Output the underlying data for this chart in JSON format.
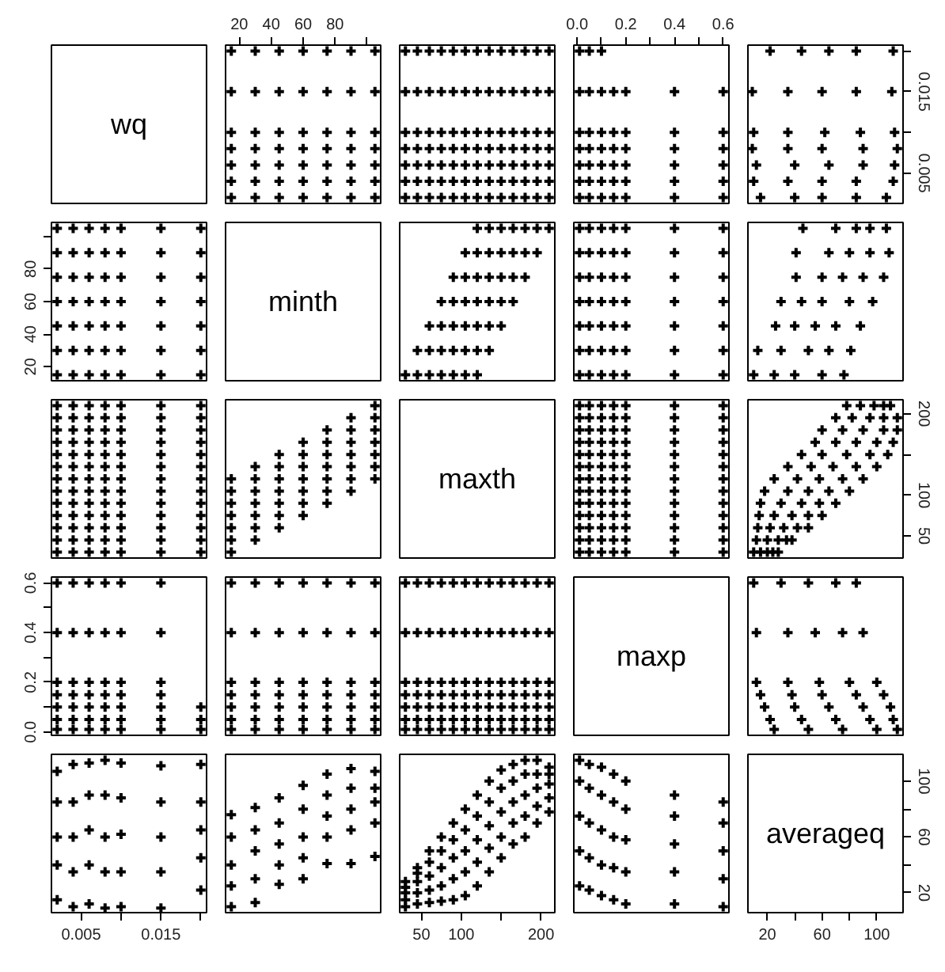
{
  "chart_data": [
    {
      "type": "other",
      "title": "wq"
    },
    {
      "type": "scatter",
      "marker": "cross",
      "color": "#000000",
      "tick_labels": "x",
      "xlim": [
        11.4,
        108.6
      ],
      "ylim": [
        0.00128,
        0.02072
      ],
      "xticks": [
        20,
        40,
        60,
        80,
        {
          "value": 100,
          "label": null
        }
      ],
      "x": [
        15,
        30,
        45,
        60,
        75,
        90,
        105,
        15,
        30,
        45,
        60,
        75,
        90,
        105,
        15,
        30,
        45,
        60,
        75,
        90,
        105,
        15,
        30,
        45,
        60,
        75,
        90,
        105,
        15,
        30,
        45,
        60,
        75,
        90,
        105,
        15,
        30,
        45,
        60,
        75,
        90,
        105,
        15,
        30,
        45,
        60,
        75,
        90,
        105
      ],
      "values": [
        0.002,
        0.002,
        0.002,
        0.002,
        0.002,
        0.002,
        0.002,
        0.004,
        0.004,
        0.004,
        0.004,
        0.004,
        0.004,
        0.004,
        0.006,
        0.006,
        0.006,
        0.006,
        0.006,
        0.006,
        0.006,
        0.008,
        0.008,
        0.008,
        0.008,
        0.008,
        0.008,
        0.008,
        0.01,
        0.01,
        0.01,
        0.01,
        0.01,
        0.01,
        0.01,
        0.015,
        0.015,
        0.015,
        0.015,
        0.015,
        0.015,
        0.015,
        0.02,
        0.02,
        0.02,
        0.02,
        0.02,
        0.02,
        0.02
      ]
    },
    {
      "type": "scatter",
      "marker": "cross",
      "color": "#000000",
      "tick_labels": false,
      "xlim": [
        22.8,
        217.2
      ],
      "ylim": [
        0.00128,
        0.02072
      ],
      "x": [
        30,
        45,
        60,
        75,
        90,
        105,
        120,
        135,
        150,
        165,
        180,
        195,
        210,
        30,
        45,
        60,
        75,
        90,
        105,
        120,
        135,
        150,
        165,
        180,
        195,
        210,
        30,
        45,
        60,
        75,
        90,
        105,
        120,
        135,
        150,
        165,
        180,
        195,
        210,
        30,
        45,
        60,
        75,
        90,
        105,
        120,
        135,
        150,
        165,
        180,
        195,
        210,
        30,
        45,
        60,
        75,
        90,
        105,
        120,
        135,
        150,
        165,
        180,
        195,
        210,
        30,
        45,
        60,
        75,
        90,
        105,
        120,
        135,
        150,
        165,
        180,
        195,
        210,
        30,
        45,
        60,
        75,
        90,
        105,
        120,
        135,
        150,
        165,
        180,
        195,
        210
      ],
      "values": [
        0.002,
        0.002,
        0.002,
        0.002,
        0.002,
        0.002,
        0.002,
        0.002,
        0.002,
        0.002,
        0.002,
        0.002,
        0.002,
        0.004,
        0.004,
        0.004,
        0.004,
        0.004,
        0.004,
        0.004,
        0.004,
        0.004,
        0.004,
        0.004,
        0.004,
        0.004,
        0.006,
        0.006,
        0.006,
        0.006,
        0.006,
        0.006,
        0.006,
        0.006,
        0.006,
        0.006,
        0.006,
        0.006,
        0.006,
        0.008,
        0.008,
        0.008,
        0.008,
        0.008,
        0.008,
        0.008,
        0.008,
        0.008,
        0.008,
        0.008,
        0.008,
        0.008,
        0.01,
        0.01,
        0.01,
        0.01,
        0.01,
        0.01,
        0.01,
        0.01,
        0.01,
        0.01,
        0.01,
        0.01,
        0.01,
        0.015,
        0.015,
        0.015,
        0.015,
        0.015,
        0.015,
        0.015,
        0.015,
        0.015,
        0.015,
        0.015,
        0.015,
        0.015,
        0.02,
        0.02,
        0.02,
        0.02,
        0.02,
        0.02,
        0.02,
        0.02,
        0.02,
        0.02,
        0.02,
        0.02,
        0.02
      ]
    },
    {
      "type": "scatter",
      "marker": "cross",
      "color": "#000000",
      "tick_labels": "x",
      "xlim": [
        -0.0136,
        0.6236
      ],
      "ylim": [
        0.00128,
        0.02072
      ],
      "xticks": [
        {
          "value": 0,
          "label": "0.0"
        },
        {
          "value": 0.1,
          "label": null
        },
        0.2,
        {
          "value": 0.3,
          "label": null
        },
        0.4,
        {
          "value": 0.5,
          "label": null
        },
        0.6
      ],
      "x": [
        0.01,
        0.05,
        0.1,
        0.15,
        0.2,
        0.4,
        0.6,
        0.01,
        0.05,
        0.1,
        0.15,
        0.2,
        0.4,
        0.6,
        0.01,
        0.05,
        0.1,
        0.15,
        0.2,
        0.4,
        0.6,
        0.01,
        0.05,
        0.1,
        0.15,
        0.2,
        0.4,
        0.6,
        0.01,
        0.05,
        0.1,
        0.15,
        0.2,
        0.4,
        0.6,
        0.01,
        0.05,
        0.1,
        0.15,
        0.2,
        0.4,
        0.6,
        0.01,
        0.05,
        0.1
      ],
      "values": [
        0.002,
        0.002,
        0.002,
        0.002,
        0.002,
        0.002,
        0.002,
        0.004,
        0.004,
        0.004,
        0.004,
        0.004,
        0.004,
        0.004,
        0.006,
        0.006,
        0.006,
        0.006,
        0.006,
        0.006,
        0.006,
        0.008,
        0.008,
        0.008,
        0.008,
        0.008,
        0.008,
        0.008,
        0.01,
        0.01,
        0.01,
        0.01,
        0.01,
        0.01,
        0.01,
        0.015,
        0.015,
        0.015,
        0.015,
        0.015,
        0.015,
        0.015,
        0.02,
        0.02,
        0.02
      ]
    },
    {
      "type": "scatter",
      "marker": "cross",
      "color": "#000000",
      "tick_labels": "y",
      "xlim": [
        5.8,
        119.2
      ],
      "ylim": [
        0.00128,
        0.02072
      ],
      "yticks": [
        0.005,
        {
          "value": 0.01,
          "label": null
        },
        0.015,
        {
          "value": 0.02,
          "label": null
        }
      ],
      "x": [
        15,
        40,
        60,
        85,
        107,
        10,
        35,
        60,
        85,
        112,
        12,
        40,
        65,
        90,
        113,
        9,
        35,
        60,
        90,
        115,
        10,
        35,
        62,
        88,
        113,
        9,
        35,
        60,
        85,
        111,
        22,
        45,
        65,
        85,
        112
      ],
      "values": [
        0.002,
        0.002,
        0.002,
        0.002,
        0.002,
        0.004,
        0.004,
        0.004,
        0.004,
        0.004,
        0.006,
        0.006,
        0.006,
        0.006,
        0.006,
        0.008,
        0.008,
        0.008,
        0.008,
        0.008,
        0.01,
        0.01,
        0.01,
        0.01,
        0.01,
        0.015,
        0.015,
        0.015,
        0.015,
        0.015,
        0.02,
        0.02,
        0.02,
        0.02,
        0.02
      ]
    },
    {
      "type": "scatter",
      "marker": "cross",
      "color": "#000000",
      "tick_labels": "y",
      "xlim": [
        0.00128,
        0.02072
      ],
      "ylim": [
        11.4,
        108.6
      ],
      "yticks": [
        20,
        40,
        60,
        80,
        {
          "value": 100,
          "label": null
        }
      ],
      "x": [
        0.002,
        0.002,
        0.002,
        0.002,
        0.002,
        0.002,
        0.002,
        0.004,
        0.004,
        0.004,
        0.004,
        0.004,
        0.004,
        0.004,
        0.006,
        0.006,
        0.006,
        0.006,
        0.006,
        0.006,
        0.006,
        0.008,
        0.008,
        0.008,
        0.008,
        0.008,
        0.008,
        0.008,
        0.01,
        0.01,
        0.01,
        0.01,
        0.01,
        0.01,
        0.01,
        0.015,
        0.015,
        0.015,
        0.015,
        0.015,
        0.015,
        0.015,
        0.02,
        0.02,
        0.02,
        0.02,
        0.02,
        0.02,
        0.02
      ],
      "values": [
        15,
        30,
        45,
        60,
        75,
        90,
        105,
        15,
        30,
        45,
        60,
        75,
        90,
        105,
        15,
        30,
        45,
        60,
        75,
        90,
        105,
        15,
        30,
        45,
        60,
        75,
        90,
        105,
        15,
        30,
        45,
        60,
        75,
        90,
        105,
        15,
        30,
        45,
        60,
        75,
        90,
        105,
        15,
        30,
        45,
        60,
        75,
        90,
        105
      ]
    },
    {
      "type": "other",
      "title": "minth"
    },
    {
      "type": "scatter",
      "marker": "cross",
      "color": "#000000",
      "tick_labels": false,
      "xlim": [
        22.8,
        217.2
      ],
      "ylim": [
        11.4,
        108.6
      ],
      "x": [
        30,
        45,
        60,
        75,
        90,
        105,
        120,
        45,
        60,
        75,
        90,
        105,
        120,
        135,
        60,
        75,
        90,
        105,
        120,
        135,
        150,
        75,
        90,
        105,
        120,
        135,
        150,
        165,
        90,
        105,
        120,
        135,
        150,
        165,
        180,
        105,
        120,
        135,
        150,
        165,
        180,
        195,
        120,
        135,
        150,
        165,
        180,
        195,
        210
      ],
      "values": [
        15,
        15,
        15,
        15,
        15,
        15,
        15,
        30,
        30,
        30,
        30,
        30,
        30,
        30,
        45,
        45,
        45,
        45,
        45,
        45,
        45,
        60,
        60,
        60,
        60,
        60,
        60,
        60,
        75,
        75,
        75,
        75,
        75,
        75,
        75,
        90,
        90,
        90,
        90,
        90,
        90,
        90,
        105,
        105,
        105,
        105,
        105,
        105,
        105
      ]
    },
    {
      "type": "scatter",
      "marker": "cross",
      "color": "#000000",
      "tick_labels": false,
      "xlim": [
        -0.0136,
        0.6236
      ],
      "ylim": [
        11.4,
        108.6
      ],
      "x": [
        0.01,
        0.05,
        0.1,
        0.15,
        0.2,
        0.4,
        0.6,
        0.01,
        0.05,
        0.1,
        0.15,
        0.2,
        0.4,
        0.6,
        0.01,
        0.05,
        0.1,
        0.15,
        0.2,
        0.4,
        0.6,
        0.01,
        0.05,
        0.1,
        0.15,
        0.2,
        0.4,
        0.6,
        0.01,
        0.05,
        0.1,
        0.15,
        0.2,
        0.4,
        0.6,
        0.01,
        0.05,
        0.1,
        0.15,
        0.2,
        0.4,
        0.6,
        0.01,
        0.05,
        0.1,
        0.15,
        0.2,
        0.4,
        0.6
      ],
      "values": [
        15,
        15,
        15,
        15,
        15,
        15,
        15,
        30,
        30,
        30,
        30,
        30,
        30,
        30,
        45,
        45,
        45,
        45,
        45,
        45,
        45,
        60,
        60,
        60,
        60,
        60,
        60,
        60,
        75,
        75,
        75,
        75,
        75,
        75,
        75,
        90,
        90,
        90,
        90,
        90,
        90,
        90,
        105,
        105,
        105,
        105,
        105,
        105,
        105
      ]
    },
    {
      "type": "scatter",
      "marker": "cross",
      "color": "#000000",
      "tick_labels": false,
      "xlim": [
        5.8,
        119.2
      ],
      "ylim": [
        11.4,
        108.6
      ],
      "x": [
        10,
        25,
        40,
        60,
        76,
        13,
        30,
        50,
        65,
        81,
        26,
        40,
        55,
        70,
        88,
        30,
        45,
        60,
        80,
        97,
        41,
        60,
        75,
        90,
        105,
        41,
        65,
        80,
        95,
        109,
        46,
        70,
        85,
        95,
        107
      ],
      "values": [
        15,
        15,
        15,
        15,
        15,
        30,
        30,
        30,
        30,
        30,
        45,
        45,
        45,
        45,
        45,
        60,
        60,
        60,
        60,
        60,
        75,
        75,
        75,
        75,
        75,
        90,
        90,
        90,
        90,
        90,
        105,
        105,
        105,
        105,
        105
      ]
    },
    {
      "type": "scatter",
      "marker": "cross",
      "color": "#000000",
      "tick_labels": false,
      "xlim": [
        0.00128,
        0.02072
      ],
      "ylim": [
        22.8,
        217.2
      ],
      "x": [
        0.002,
        0.002,
        0.002,
        0.002,
        0.002,
        0.002,
        0.002,
        0.002,
        0.002,
        0.002,
        0.002,
        0.002,
        0.002,
        0.004,
        0.004,
        0.004,
        0.004,
        0.004,
        0.004,
        0.004,
        0.004,
        0.004,
        0.004,
        0.004,
        0.004,
        0.004,
        0.006,
        0.006,
        0.006,
        0.006,
        0.006,
        0.006,
        0.006,
        0.006,
        0.006,
        0.006,
        0.006,
        0.006,
        0.006,
        0.008,
        0.008,
        0.008,
        0.008,
        0.008,
        0.008,
        0.008,
        0.008,
        0.008,
        0.008,
        0.008,
        0.008,
        0.008,
        0.01,
        0.01,
        0.01,
        0.01,
        0.01,
        0.01,
        0.01,
        0.01,
        0.01,
        0.01,
        0.01,
        0.01,
        0.01,
        0.015,
        0.015,
        0.015,
        0.015,
        0.015,
        0.015,
        0.015,
        0.015,
        0.015,
        0.015,
        0.015,
        0.015,
        0.015,
        0.02,
        0.02,
        0.02,
        0.02,
        0.02,
        0.02,
        0.02,
        0.02,
        0.02,
        0.02,
        0.02,
        0.02,
        0.02
      ],
      "values": [
        30,
        45,
        60,
        75,
        90,
        105,
        120,
        135,
        150,
        165,
        180,
        195,
        210,
        30,
        45,
        60,
        75,
        90,
        105,
        120,
        135,
        150,
        165,
        180,
        195,
        210,
        30,
        45,
        60,
        75,
        90,
        105,
        120,
        135,
        150,
        165,
        180,
        195,
        210,
        30,
        45,
        60,
        75,
        90,
        105,
        120,
        135,
        150,
        165,
        180,
        195,
        210,
        30,
        45,
        60,
        75,
        90,
        105,
        120,
        135,
        150,
        165,
        180,
        195,
        210,
        30,
        45,
        60,
        75,
        90,
        105,
        120,
        135,
        150,
        165,
        180,
        195,
        210,
        30,
        45,
        60,
        75,
        90,
        105,
        120,
        135,
        150,
        165,
        180,
        195,
        210
      ]
    },
    {
      "type": "scatter",
      "marker": "cross",
      "color": "#000000",
      "tick_labels": false,
      "xlim": [
        11.4,
        108.6
      ],
      "ylim": [
        22.8,
        217.2
      ],
      "x": [
        15,
        15,
        15,
        15,
        15,
        15,
        15,
        30,
        30,
        30,
        30,
        30,
        30,
        30,
        45,
        45,
        45,
        45,
        45,
        45,
        45,
        60,
        60,
        60,
        60,
        60,
        60,
        60,
        75,
        75,
        75,
        75,
        75,
        75,
        75,
        90,
        90,
        90,
        90,
        90,
        90,
        90,
        105,
        105,
        105,
        105,
        105,
        105,
        105
      ],
      "values": [
        30,
        45,
        60,
        75,
        90,
        105,
        120,
        45,
        60,
        75,
        90,
        105,
        120,
        135,
        60,
        75,
        90,
        105,
        120,
        135,
        150,
        75,
        90,
        105,
        120,
        135,
        150,
        165,
        90,
        105,
        120,
        135,
        150,
        165,
        180,
        105,
        120,
        135,
        150,
        165,
        180,
        195,
        120,
        135,
        150,
        165,
        180,
        195,
        210
      ]
    },
    {
      "type": "other",
      "title": "maxth"
    },
    {
      "type": "scatter",
      "marker": "cross",
      "color": "#000000",
      "tick_labels": false,
      "xlim": [
        -0.0136,
        0.6236
      ],
      "ylim": [
        22.8,
        217.2
      ],
      "x": [
        0.01,
        0.05,
        0.1,
        0.15,
        0.2,
        0.4,
        0.6,
        0.01,
        0.05,
        0.1,
        0.15,
        0.2,
        0.4,
        0.6,
        0.01,
        0.05,
        0.1,
        0.15,
        0.2,
        0.4,
        0.6,
        0.01,
        0.05,
        0.1,
        0.15,
        0.2,
        0.4,
        0.6,
        0.01,
        0.05,
        0.1,
        0.15,
        0.2,
        0.4,
        0.6,
        0.01,
        0.05,
        0.1,
        0.15,
        0.2,
        0.4,
        0.6,
        0.01,
        0.05,
        0.1,
        0.15,
        0.2,
        0.4,
        0.6,
        0.01,
        0.05,
        0.1,
        0.15,
        0.2,
        0.4,
        0.6,
        0.01,
        0.05,
        0.1,
        0.15,
        0.2,
        0.4,
        0.6,
        0.01,
        0.05,
        0.1,
        0.15,
        0.2,
        0.4,
        0.6,
        0.01,
        0.05,
        0.1,
        0.15,
        0.2,
        0.4,
        0.6,
        0.01,
        0.05,
        0.1,
        0.15,
        0.2,
        0.4,
        0.6,
        0.01,
        0.05,
        0.1,
        0.15,
        0.2,
        0.4,
        0.6
      ],
      "values": [
        30,
        30,
        30,
        30,
        30,
        30,
        30,
        45,
        45,
        45,
        45,
        45,
        45,
        45,
        60,
        60,
        60,
        60,
        60,
        60,
        60,
        75,
        75,
        75,
        75,
        75,
        75,
        75,
        90,
        90,
        90,
        90,
        90,
        90,
        90,
        105,
        105,
        105,
        105,
        105,
        105,
        105,
        120,
        120,
        120,
        120,
        120,
        120,
        120,
        135,
        135,
        135,
        135,
        135,
        135,
        135,
        150,
        150,
        150,
        150,
        150,
        150,
        150,
        165,
        165,
        165,
        165,
        165,
        165,
        165,
        180,
        180,
        180,
        180,
        180,
        180,
        180,
        195,
        195,
        195,
        195,
        195,
        195,
        195,
        210,
        210,
        210,
        210,
        210,
        210,
        210
      ]
    },
    {
      "type": "scatter",
      "marker": "cross",
      "color": "#000000",
      "tick_labels": "y",
      "xlim": [
        5.8,
        119.2
      ],
      "ylim": [
        22.8,
        217.2
      ],
      "yticks": [
        50,
        100,
        {
          "value": 150,
          "label": null
        },
        200
      ],
      "x": [
        10,
        15,
        20,
        24,
        28,
        12,
        20,
        28,
        34,
        38,
        13,
        22,
        32,
        42,
        50,
        14,
        25,
        38,
        50,
        60,
        15,
        30,
        45,
        58,
        70,
        18,
        35,
        50,
        65,
        80,
        25,
        42,
        58,
        75,
        90,
        35,
        52,
        68,
        85,
        100,
        45,
        60,
        78,
        95,
        108,
        55,
        70,
        85,
        100,
        112,
        60,
        75,
        90,
        105,
        115,
        70,
        82,
        95,
        105,
        115,
        78,
        88,
        98,
        105,
        110
      ],
      "values": [
        30,
        30,
        30,
        30,
        30,
        45,
        45,
        45,
        45,
        45,
        60,
        60,
        60,
        60,
        60,
        75,
        75,
        75,
        75,
        75,
        90,
        90,
        90,
        90,
        90,
        105,
        105,
        105,
        105,
        105,
        120,
        120,
        120,
        120,
        120,
        135,
        135,
        135,
        135,
        135,
        150,
        150,
        150,
        150,
        150,
        165,
        165,
        165,
        165,
        165,
        180,
        180,
        180,
        180,
        180,
        195,
        195,
        195,
        195,
        195,
        210,
        210,
        210,
        210,
        210
      ]
    },
    {
      "type": "scatter",
      "marker": "cross",
      "color": "#000000",
      "tick_labels": "y",
      "xlim": [
        0.00128,
        0.02072
      ],
      "ylim": [
        -0.0136,
        0.6236
      ],
      "yticks": [
        {
          "value": 0,
          "label": "0.0"
        },
        {
          "value": 0.1,
          "label": null
        },
        0.2,
        {
          "value": 0.3,
          "label": null
        },
        0.4,
        {
          "value": 0.5,
          "label": null
        },
        0.6
      ],
      "x": [
        0.002,
        0.002,
        0.002,
        0.002,
        0.002,
        0.002,
        0.002,
        0.004,
        0.004,
        0.004,
        0.004,
        0.004,
        0.004,
        0.004,
        0.006,
        0.006,
        0.006,
        0.006,
        0.006,
        0.006,
        0.006,
        0.008,
        0.008,
        0.008,
        0.008,
        0.008,
        0.008,
        0.008,
        0.01,
        0.01,
        0.01,
        0.01,
        0.01,
        0.01,
        0.01,
        0.015,
        0.015,
        0.015,
        0.015,
        0.015,
        0.015,
        0.015,
        0.02,
        0.02,
        0.02
      ],
      "values": [
        0.01,
        0.05,
        0.1,
        0.15,
        0.2,
        0.4,
        0.6,
        0.01,
        0.05,
        0.1,
        0.15,
        0.2,
        0.4,
        0.6,
        0.01,
        0.05,
        0.1,
        0.15,
        0.2,
        0.4,
        0.6,
        0.01,
        0.05,
        0.1,
        0.15,
        0.2,
        0.4,
        0.6,
        0.01,
        0.05,
        0.1,
        0.15,
        0.2,
        0.4,
        0.6,
        0.01,
        0.05,
        0.1,
        0.15,
        0.2,
        0.4,
        0.6,
        0.01,
        0.05,
        0.1
      ]
    },
    {
      "type": "scatter",
      "marker": "cross",
      "color": "#000000",
      "tick_labels": false,
      "xlim": [
        11.4,
        108.6
      ],
      "ylim": [
        -0.0136,
        0.6236
      ],
      "x": [
        15,
        15,
        15,
        15,
        15,
        15,
        15,
        30,
        30,
        30,
        30,
        30,
        30,
        30,
        45,
        45,
        45,
        45,
        45,
        45,
        45,
        60,
        60,
        60,
        60,
        60,
        60,
        60,
        75,
        75,
        75,
        75,
        75,
        75,
        75,
        90,
        90,
        90,
        90,
        90,
        90,
        90,
        105,
        105,
        105,
        105,
        105,
        105,
        105
      ],
      "values": [
        0.01,
        0.05,
        0.1,
        0.15,
        0.2,
        0.4,
        0.6,
        0.01,
        0.05,
        0.1,
        0.15,
        0.2,
        0.4,
        0.6,
        0.01,
        0.05,
        0.1,
        0.15,
        0.2,
        0.4,
        0.6,
        0.01,
        0.05,
        0.1,
        0.15,
        0.2,
        0.4,
        0.6,
        0.01,
        0.05,
        0.1,
        0.15,
        0.2,
        0.4,
        0.6,
        0.01,
        0.05,
        0.1,
        0.15,
        0.2,
        0.4,
        0.6,
        0.01,
        0.05,
        0.1,
        0.15,
        0.2,
        0.4,
        0.6
      ]
    },
    {
      "type": "scatter",
      "marker": "cross",
      "color": "#000000",
      "tick_labels": false,
      "xlim": [
        22.8,
        217.2
      ],
      "ylim": [
        -0.0136,
        0.6236
      ],
      "x": [
        30,
        30,
        30,
        30,
        30,
        30,
        30,
        45,
        45,
        45,
        45,
        45,
        45,
        45,
        60,
        60,
        60,
        60,
        60,
        60,
        60,
        75,
        75,
        75,
        75,
        75,
        75,
        75,
        90,
        90,
        90,
        90,
        90,
        90,
        90,
        105,
        105,
        105,
        105,
        105,
        105,
        105,
        120,
        120,
        120,
        120,
        120,
        120,
        120,
        135,
        135,
        135,
        135,
        135,
        135,
        135,
        150,
        150,
        150,
        150,
        150,
        150,
        150,
        165,
        165,
        165,
        165,
        165,
        165,
        165,
        180,
        180,
        180,
        180,
        180,
        180,
        180,
        195,
        195,
        195,
        195,
        195,
        195,
        195,
        210,
        210,
        210,
        210,
        210,
        210,
        210
      ],
      "values": [
        0.01,
        0.05,
        0.1,
        0.15,
        0.2,
        0.4,
        0.6,
        0.01,
        0.05,
        0.1,
        0.15,
        0.2,
        0.4,
        0.6,
        0.01,
        0.05,
        0.1,
        0.15,
        0.2,
        0.4,
        0.6,
        0.01,
        0.05,
        0.1,
        0.15,
        0.2,
        0.4,
        0.6,
        0.01,
        0.05,
        0.1,
        0.15,
        0.2,
        0.4,
        0.6,
        0.01,
        0.05,
        0.1,
        0.15,
        0.2,
        0.4,
        0.6,
        0.01,
        0.05,
        0.1,
        0.15,
        0.2,
        0.4,
        0.6,
        0.01,
        0.05,
        0.1,
        0.15,
        0.2,
        0.4,
        0.6,
        0.01,
        0.05,
        0.1,
        0.15,
        0.2,
        0.4,
        0.6,
        0.01,
        0.05,
        0.1,
        0.15,
        0.2,
        0.4,
        0.6,
        0.01,
        0.05,
        0.1,
        0.15,
        0.2,
        0.4,
        0.6,
        0.01,
        0.05,
        0.1,
        0.15,
        0.2,
        0.4,
        0.6,
        0.01,
        0.05,
        0.1,
        0.15,
        0.2,
        0.4,
        0.6
      ]
    },
    {
      "type": "other",
      "title": "maxp"
    },
    {
      "type": "scatter",
      "marker": "cross",
      "color": "#000000",
      "tick_labels": false,
      "xlim": [
        5.8,
        119.2
      ],
      "ylim": [
        -0.0136,
        0.6236
      ],
      "x": [
        25,
        50,
        75,
        100,
        115,
        22,
        45,
        70,
        95,
        112,
        18,
        40,
        65,
        90,
        110,
        15,
        38,
        60,
        85,
        105,
        12,
        35,
        58,
        80,
        100,
        12,
        35,
        55,
        75,
        90,
        10,
        30,
        50,
        70,
        85
      ],
      "values": [
        0.01,
        0.01,
        0.01,
        0.01,
        0.01,
        0.05,
        0.05,
        0.05,
        0.05,
        0.05,
        0.1,
        0.1,
        0.1,
        0.1,
        0.1,
        0.15,
        0.15,
        0.15,
        0.15,
        0.15,
        0.2,
        0.2,
        0.2,
        0.2,
        0.2,
        0.4,
        0.4,
        0.4,
        0.4,
        0.4,
        0.6,
        0.6,
        0.6,
        0.6,
        0.6
      ]
    },
    {
      "type": "scatter",
      "marker": "cross",
      "color": "#000000",
      "tick_labels": "x",
      "xlim": [
        0.00128,
        0.02072
      ],
      "ylim": [
        5.8,
        119.2
      ],
      "xticks": [
        0.005,
        {
          "value": 0.01,
          "label": null
        },
        0.015,
        {
          "value": 0.02,
          "label": null
        }
      ],
      "x": [
        0.002,
        0.002,
        0.002,
        0.002,
        0.002,
        0.004,
        0.004,
        0.004,
        0.004,
        0.004,
        0.006,
        0.006,
        0.006,
        0.006,
        0.006,
        0.008,
        0.008,
        0.008,
        0.008,
        0.008,
        0.01,
        0.01,
        0.01,
        0.01,
        0.01,
        0.015,
        0.015,
        0.015,
        0.015,
        0.015,
        0.02,
        0.02,
        0.02,
        0.02,
        0.02
      ],
      "values": [
        15,
        40,
        60,
        85,
        107,
        10,
        35,
        60,
        85,
        112,
        12,
        40,
        65,
        90,
        113,
        9,
        35,
        60,
        90,
        115,
        10,
        35,
        62,
        88,
        113,
        9,
        35,
        60,
        85,
        111,
        22,
        45,
        65,
        85,
        112
      ]
    },
    {
      "type": "scatter",
      "marker": "cross",
      "color": "#000000",
      "tick_labels": false,
      "xlim": [
        11.4,
        108.6
      ],
      "ylim": [
        5.8,
        119.2
      ],
      "x": [
        15,
        15,
        15,
        15,
        15,
        30,
        30,
        30,
        30,
        30,
        45,
        45,
        45,
        45,
        45,
        60,
        60,
        60,
        60,
        60,
        75,
        75,
        75,
        75,
        75,
        90,
        90,
        90,
        90,
        90,
        105,
        105,
        105,
        105,
        105
      ],
      "values": [
        10,
        25,
        40,
        60,
        76,
        13,
        30,
        50,
        65,
        81,
        26,
        40,
        55,
        70,
        88,
        30,
        45,
        60,
        80,
        97,
        41,
        60,
        75,
        90,
        105,
        41,
        65,
        80,
        95,
        109,
        46,
        70,
        85,
        95,
        107
      ]
    },
    {
      "type": "scatter",
      "marker": "cross",
      "color": "#000000",
      "tick_labels": "x",
      "xlim": [
        22.8,
        217.2
      ],
      "ylim": [
        5.8,
        119.2
      ],
      "xticks": [
        50,
        100,
        {
          "value": 150,
          "label": null
        },
        200
      ],
      "x": [
        30,
        30,
        30,
        30,
        30,
        45,
        45,
        45,
        45,
        45,
        60,
        60,
        60,
        60,
        60,
        75,
        75,
        75,
        75,
        75,
        90,
        90,
        90,
        90,
        90,
        105,
        105,
        105,
        105,
        105,
        120,
        120,
        120,
        120,
        120,
        135,
        135,
        135,
        135,
        135,
        150,
        150,
        150,
        150,
        150,
        165,
        165,
        165,
        165,
        165,
        180,
        180,
        180,
        180,
        180,
        195,
        195,
        195,
        195,
        195,
        210,
        210,
        210,
        210,
        210
      ],
      "values": [
        10,
        15,
        20,
        24,
        28,
        12,
        20,
        28,
        34,
        38,
        13,
        22,
        32,
        42,
        50,
        14,
        25,
        38,
        50,
        60,
        15,
        30,
        45,
        58,
        70,
        18,
        35,
        50,
        65,
        80,
        25,
        42,
        58,
        75,
        90,
        35,
        52,
        68,
        85,
        100,
        45,
        60,
        78,
        95,
        108,
        55,
        70,
        85,
        100,
        112,
        60,
        75,
        90,
        105,
        115,
        70,
        82,
        95,
        105,
        115,
        78,
        88,
        98,
        105,
        110
      ]
    },
    {
      "type": "scatter",
      "marker": "cross",
      "color": "#000000",
      "tick_labels": false,
      "xlim": [
        -0.0136,
        0.6236
      ],
      "ylim": [
        5.8,
        119.2
      ],
      "x": [
        0.01,
        0.01,
        0.01,
        0.01,
        0.01,
        0.05,
        0.05,
        0.05,
        0.05,
        0.05,
        0.1,
        0.1,
        0.1,
        0.1,
        0.1,
        0.15,
        0.15,
        0.15,
        0.15,
        0.15,
        0.2,
        0.2,
        0.2,
        0.2,
        0.2,
        0.4,
        0.4,
        0.4,
        0.4,
        0.4,
        0.6,
        0.6,
        0.6,
        0.6,
        0.6
      ],
      "values": [
        25,
        50,
        75,
        100,
        115,
        22,
        45,
        70,
        95,
        112,
        18,
        40,
        65,
        90,
        110,
        15,
        38,
        60,
        85,
        105,
        12,
        35,
        58,
        80,
        100,
        12,
        35,
        55,
        75,
        90,
        10,
        30,
        50,
        70,
        85
      ]
    },
    {
      "type": "scatter",
      "title": "averageq",
      "xlim": [
        5.8,
        119.2
      ],
      "ylim": [
        5.8,
        119.2
      ],
      "xticks": [
        20,
        {
          "value": 40,
          "label": null
        },
        60,
        {
          "value": 80,
          "label": null
        },
        100
      ],
      "yticks": [
        20,
        {
          "value": 40,
          "label": null
        },
        60,
        {
          "value": 80,
          "label": null
        },
        100
      ]
    }
  ]
}
